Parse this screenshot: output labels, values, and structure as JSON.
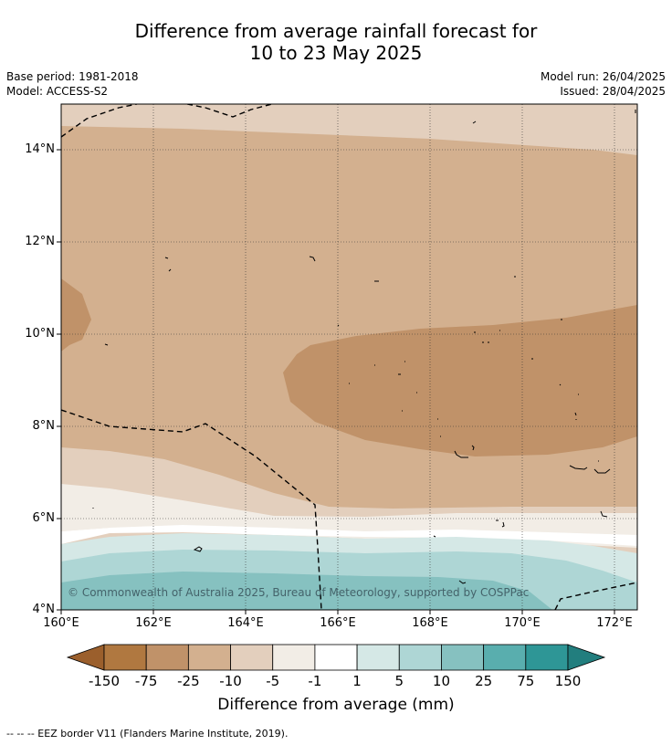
{
  "title": {
    "line1": "Difference from average rainfall forecast for",
    "line2": "10 to 23 May 2025"
  },
  "meta": {
    "base_period": "Base period: 1981-2018",
    "model": "Model: ACCESS-S2",
    "model_run": "Model run: 26/04/2025",
    "issued": "Issued: 28/04/2025"
  },
  "map": {
    "lat_labels": [
      "14°N",
      "12°N",
      "10°N",
      "8°N",
      "6°N",
      "4°N"
    ],
    "lon_labels": [
      "160°E",
      "162°E",
      "164°E",
      "166°E",
      "168°E",
      "170°E",
      "172°E"
    ],
    "copyright": "© Commonwealth of Australia 2025, Bureau of Meteorology, supported by COSPPac"
  },
  "colorbar": {
    "title": "Difference from average (mm)",
    "tick_labels": [
      "-150",
      "-75",
      "-25",
      "-10",
      "-5",
      "-1",
      "1",
      "5",
      "10",
      "25",
      "75",
      "150"
    ],
    "colors": [
      "#9b5f2c",
      "#b07840",
      "#c09269",
      "#d3b08f",
      "#e3cfbd",
      "#f2ede6",
      "#ffffff",
      "#d5e8e6",
      "#aed6d5",
      "#86c1c0",
      "#59aeae",
      "#2e9696",
      "#227e7e"
    ]
  },
  "footer": "--  --  -- EEZ border V11 (Flanders Marine Institute, 2019)."
}
